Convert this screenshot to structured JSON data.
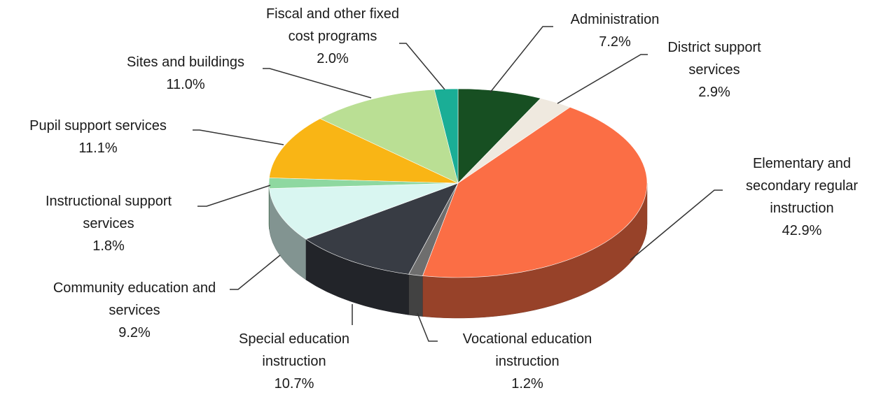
{
  "chart_data": {
    "type": "pie",
    "categories": [
      "Administration",
      "District support services",
      "Elementary and secondary regular instruction",
      "Vocational education instruction",
      "Special education instruction",
      "Community education and services",
      "Instructional support services",
      "Pupil support services",
      "Sites and buildings",
      "Fiscal and other fixed cost programs"
    ],
    "values": [
      7.2,
      2.9,
      42.9,
      1.2,
      10.7,
      9.2,
      1.8,
      11.1,
      11.0,
      2.0
    ],
    "value_labels": [
      "7.2%",
      "2.9%",
      "42.9%",
      "1.2%",
      "10.7%",
      "9.2%",
      "1.8%",
      "11.1%",
      "11.0%",
      "2.0%"
    ],
    "colors": [
      "#174f22",
      "#efe9df",
      "#fb6e45",
      "#6e6e6e",
      "#383c44",
      "#d9f6f1",
      "#8ed8a0",
      "#f9b515",
      "#badf94",
      "#1aae96"
    ]
  }
}
